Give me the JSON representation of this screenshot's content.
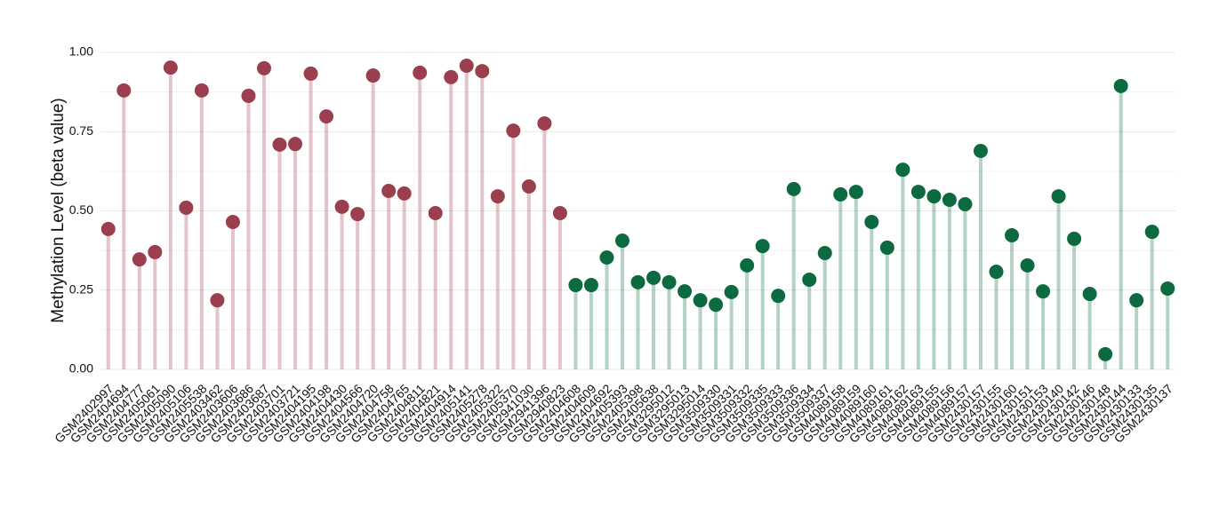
{
  "chart_data": {
    "type": "lollipop",
    "y_label": "Methylation Level (beta value)",
    "categories": [
      "GSM2402997",
      "GSM2404694",
      "GSM2404777",
      "GSM2405061",
      "GSM2405090",
      "GSM2405106",
      "GSM2405538",
      "GSM2403462",
      "GSM2403606",
      "GSM2403686",
      "GSM2403687",
      "GSM2403701",
      "GSM2403721",
      "GSM2404195",
      "GSM2404198",
      "GSM2404430",
      "GSM2404566",
      "GSM2404720",
      "GSM2404758",
      "GSM2404765",
      "GSM2404811",
      "GSM2404821",
      "GSM2404914",
      "GSM2405141",
      "GSM2405278",
      "GSM2405322",
      "GSM2405370",
      "GSM2941030",
      "GSM2941396",
      "GSM2940823",
      "GSM2404608",
      "GSM2404609",
      "GSM2404692",
      "GSM2405393",
      "GSM2405398",
      "GSM2405638",
      "GSM3295012",
      "GSM3295013",
      "GSM3295014",
      "GSM3509330",
      "GSM3509331",
      "GSM3509332",
      "GSM3509335",
      "GSM3509333",
      "GSM3509336",
      "GSM3509334",
      "GSM3509337",
      "GSM4089158",
      "GSM4089159",
      "GSM4089160",
      "GSM4089161",
      "GSM4089162",
      "GSM4089163",
      "GSM4089155",
      "GSM4089156",
      "GSM4089157",
      "GSM2430157",
      "GSM2430155",
      "GSM2430160",
      "GSM2430151",
      "GSM2430153",
      "GSM2430140",
      "GSM2430142",
      "GSM2430146",
      "GSM2430148",
      "GSM2430144",
      "GSM2430133",
      "GSM2430135",
      "GSM2430137"
    ],
    "values": [
      0.443,
      0.88,
      0.347,
      0.37,
      0.952,
      0.51,
      0.88,
      0.218,
      0.465,
      0.863,
      0.95,
      0.709,
      0.711,
      0.933,
      0.798,
      0.513,
      0.49,
      0.927,
      0.563,
      0.555,
      0.936,
      0.493,
      0.922,
      0.958,
      0.941,
      0.546,
      0.753,
      0.577,
      0.776,
      0.493,
      0.266,
      0.266,
      0.353,
      0.406,
      0.275,
      0.289,
      0.275,
      0.246,
      0.218,
      0.204,
      0.244,
      0.328,
      0.389,
      0.232,
      0.569,
      0.283,
      0.367,
      0.552,
      0.56,
      0.465,
      0.384,
      0.63,
      0.56,
      0.546,
      0.535,
      0.521,
      0.689,
      0.308,
      0.423,
      0.328,
      0.246,
      0.546,
      0.412,
      0.238,
      0.048,
      0.894,
      0.218,
      0.434,
      0.255
    ],
    "colors": [
      "#9b3f4f",
      "#9b3f4f",
      "#9b3f4f",
      "#9b3f4f",
      "#9b3f4f",
      "#9b3f4f",
      "#9b3f4f",
      "#9b3f4f",
      "#9b3f4f",
      "#9b3f4f",
      "#9b3f4f",
      "#9b3f4f",
      "#9b3f4f",
      "#9b3f4f",
      "#9b3f4f",
      "#9b3f4f",
      "#9b3f4f",
      "#9b3f4f",
      "#9b3f4f",
      "#9b3f4f",
      "#9b3f4f",
      "#9b3f4f",
      "#9b3f4f",
      "#9b3f4f",
      "#9b3f4f",
      "#9b3f4f",
      "#9b3f4f",
      "#9b3f4f",
      "#9b3f4f",
      "#9b3f4f",
      "#0b6a40",
      "#0b6a40",
      "#0b6a40",
      "#0b6a40",
      "#0b6a40",
      "#0b6a40",
      "#0b6a40",
      "#0b6a40",
      "#0b6a40",
      "#0b6a40",
      "#0b6a40",
      "#0b6a40",
      "#0b6a40",
      "#0b6a40",
      "#0b6a40",
      "#0b6a40",
      "#0b6a40",
      "#0b6a40",
      "#0b6a40",
      "#0b6a40",
      "#0b6a40",
      "#0b6a40",
      "#0b6a40",
      "#0b6a40",
      "#0b6a40",
      "#0b6a40",
      "#0b6a40",
      "#0b6a40",
      "#0b6a40",
      "#0b6a40",
      "#0b6a40",
      "#0b6a40",
      "#0b6a40",
      "#0b6a40",
      "#0b6a40",
      "#0b6a40",
      "#0b6a40",
      "#0b6a40",
      "#0b6a40"
    ],
    "ylim": [
      0,
      1
    ],
    "yticks": [
      {
        "value": 0,
        "label": "0.00"
      },
      {
        "value": 0.25,
        "label": "0.25"
      },
      {
        "value": 0.5,
        "label": "0.50"
      },
      {
        "value": 0.75,
        "label": "0.75"
      },
      {
        "value": 1,
        "label": "1.00"
      }
    ],
    "minor_yticks": [
      0.125,
      0.375,
      0.625,
      0.875
    ],
    "grid": true
  }
}
